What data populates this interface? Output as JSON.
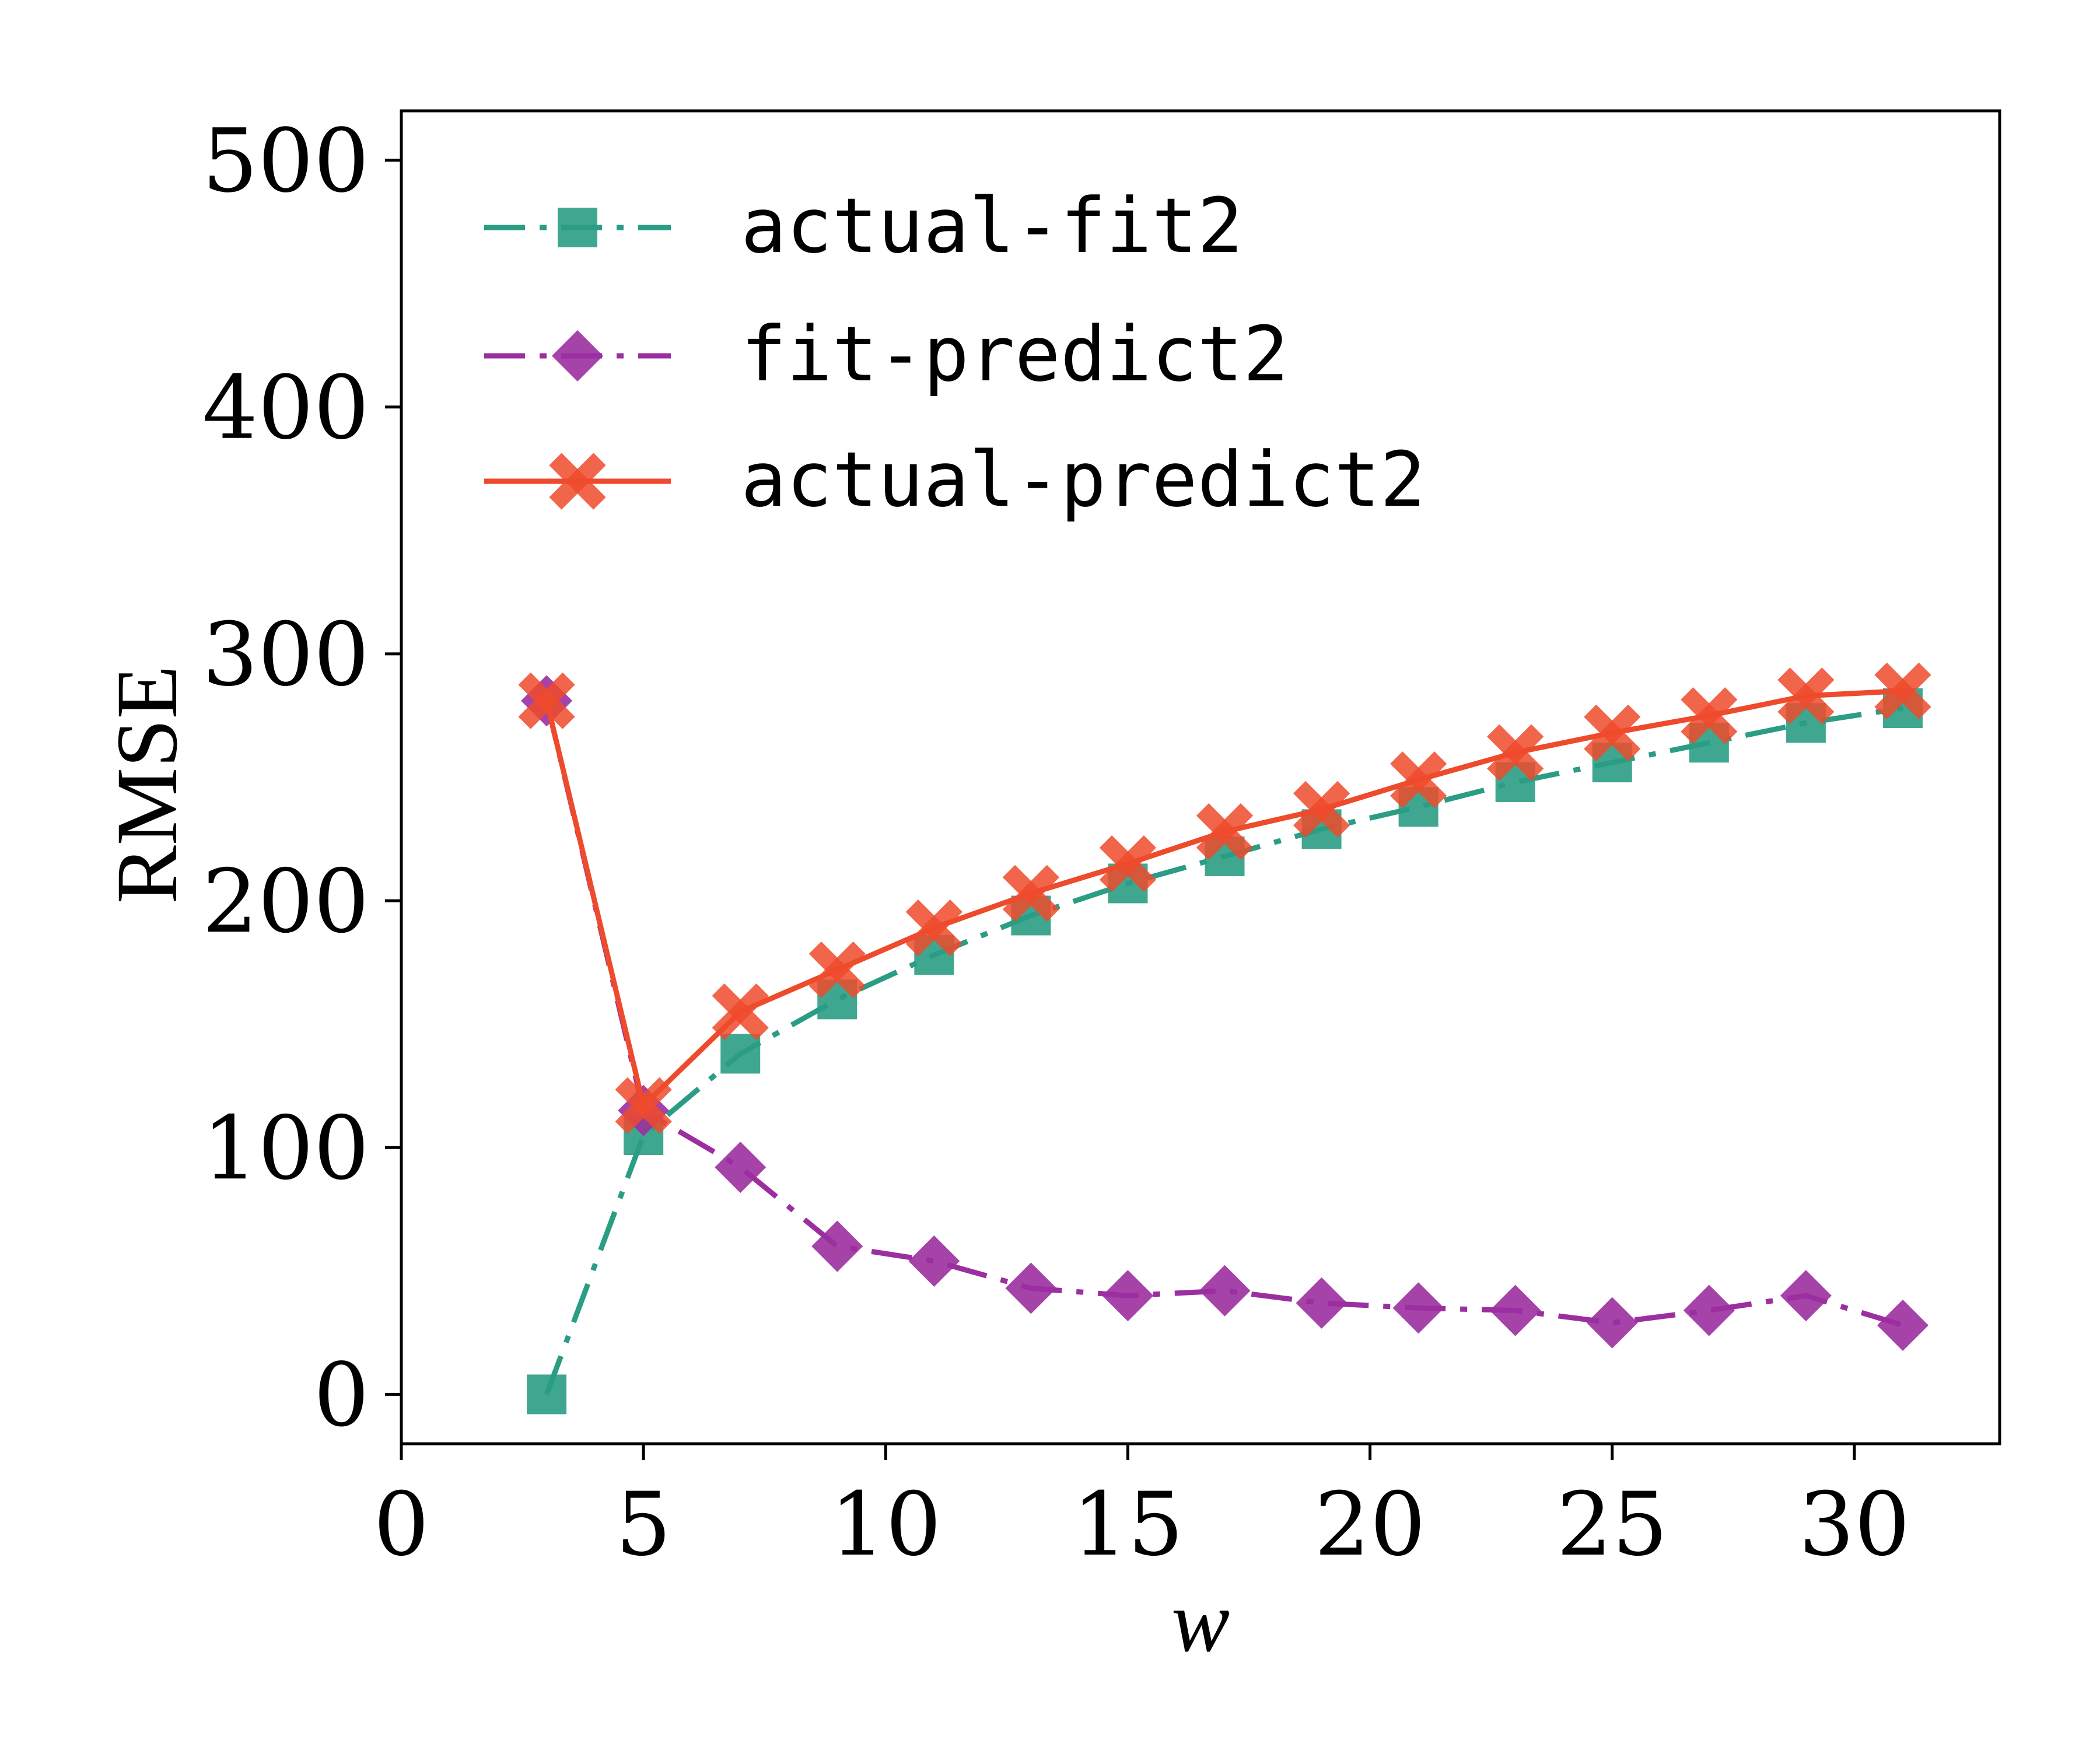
{
  "chart_data": {
    "type": "line",
    "xlabel": "w",
    "ylabel": "RMSE",
    "xlim": [
      0,
      33
    ],
    "ylim": [
      -20,
      520
    ],
    "xticks": [
      "0",
      "5",
      "10",
      "15",
      "20",
      "25",
      "30"
    ],
    "yticks": [
      "0",
      "100",
      "200",
      "300",
      "400",
      "500"
    ],
    "grid": false,
    "legend_position": "top-left",
    "x": [
      3,
      5,
      7,
      9,
      11,
      13,
      15,
      17,
      19,
      21,
      23,
      25,
      27,
      29,
      31
    ],
    "series": [
      {
        "name": "actual-fit2",
        "color": "#2a9d84",
        "marker": "square",
        "linestyle": "dashdot",
        "values": [
          0,
          105,
          138,
          160,
          178,
          194,
          207,
          218,
          229,
          238,
          248,
          256,
          264,
          272,
          278
        ]
      },
      {
        "name": "fit-predict2",
        "color": "#9b2fa0",
        "marker": "diamond",
        "linestyle": "dashdot",
        "values": [
          281,
          115,
          92,
          60,
          54,
          43,
          40,
          42,
          37,
          35,
          34,
          29,
          34,
          40,
          28
        ]
      },
      {
        "name": "actual-predict2",
        "color": "#ee4a2c",
        "marker": "x",
        "linestyle": "solid",
        "values": [
          281,
          117,
          155,
          172,
          189,
          203,
          215,
          228,
          237,
          249,
          260,
          268,
          275,
          283,
          285
        ]
      }
    ]
  }
}
